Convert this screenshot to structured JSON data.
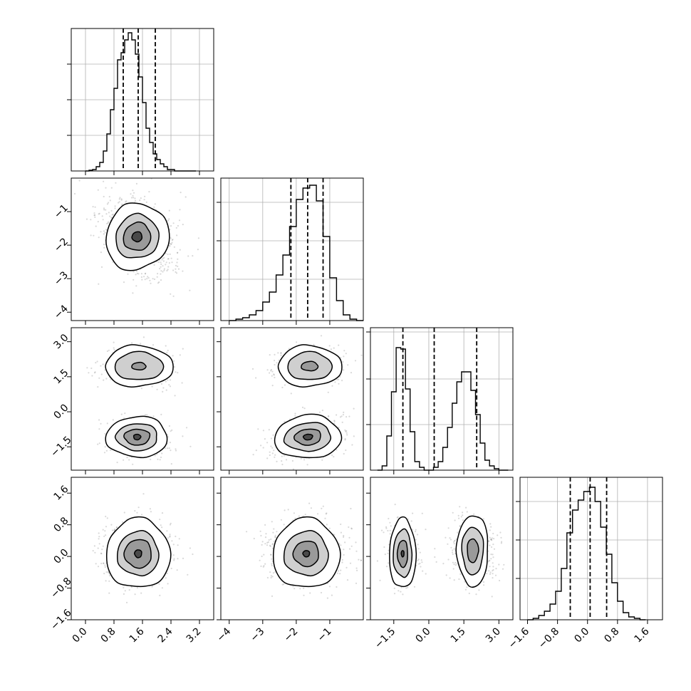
{
  "chart_data": {
    "type": "corner",
    "grid": true,
    "parameters": [
      {
        "xlim": [
          -0.4,
          3.6
        ],
        "xticks": [
          "0.0",
          "0.8",
          "1.6",
          "2.4",
          "3.2"
        ],
        "xtick_values": [
          0.0,
          0.8,
          1.6,
          2.4,
          3.2
        ],
        "hist_ylim": [
          0,
          1
        ],
        "hist_grid_y": [
          0.25,
          0.5,
          0.75
        ],
        "quantiles": [
          1.06,
          1.48,
          1.96
        ],
        "histogram": {
          "bins": [
            0.0,
            0.1,
            0.2,
            0.3,
            0.4,
            0.5,
            0.6,
            0.7,
            0.8,
            0.9,
            1.0,
            1.1,
            1.2,
            1.3,
            1.4,
            1.5,
            1.6,
            1.7,
            1.8,
            1.9,
            2.0,
            2.1,
            2.2,
            2.3,
            2.4,
            2.5,
            2.6,
            2.7,
            2.8,
            2.9,
            3.0
          ],
          "counts": [
            0.0,
            0.005,
            0.01,
            0.03,
            0.06,
            0.14,
            0.26,
            0.43,
            0.58,
            0.78,
            0.83,
            0.92,
            0.97,
            0.92,
            0.82,
            0.66,
            0.48,
            0.3,
            0.2,
            0.12,
            0.08,
            0.05,
            0.03,
            0.01,
            0.01,
            0.0,
            0.0,
            0.0,
            0.0,
            0.0,
            0.0
          ]
        }
      },
      {
        "xlim": [
          -4.25,
          0.0
        ],
        "ylim": [
          -4.25,
          0.0
        ],
        "xticks": [
          "−4",
          "−3",
          "−2",
          "−1"
        ],
        "xtick_values": [
          -4,
          -3,
          -2,
          -1
        ],
        "yticks": [
          "−4",
          "−3",
          "−2",
          "−1"
        ],
        "ytick_values": [
          -4,
          -3,
          -2,
          -1
        ],
        "hist_ylim": [
          0,
          1
        ],
        "hist_grid_y": [
          0.29,
          0.56,
          0.83
        ],
        "quantiles": [
          -2.16,
          -1.66,
          -1.2
        ],
        "histogram": {
          "bins": [
            -4.0,
            -3.8,
            -3.6,
            -3.4,
            -3.2,
            -3.0,
            -2.8,
            -2.6,
            -2.4,
            -2.2,
            -2.0,
            -1.8,
            -1.6,
            -1.4,
            -1.2,
            -1.0,
            -0.8,
            -0.6,
            -0.4,
            -0.2
          ],
          "counts": [
            0.0,
            0.01,
            0.02,
            0.04,
            0.07,
            0.13,
            0.2,
            0.32,
            0.46,
            0.66,
            0.85,
            0.93,
            0.95,
            0.84,
            0.59,
            0.3,
            0.14,
            0.04,
            0.01,
            0.0
          ]
        }
      },
      {
        "xlim": [
          -2.5,
          3.6
        ],
        "ylim": [
          -2.5,
          3.6
        ],
        "xticks": [
          "−1.5",
          "0.0",
          "1.5",
          "3.0"
        ],
        "xtick_values": [
          -1.5,
          0.0,
          1.5,
          3.0
        ],
        "yticks": [
          "−1.5",
          "0.0",
          "1.5",
          "3.0"
        ],
        "ytick_values": [
          -1.5,
          0.0,
          1.5,
          3.0
        ],
        "hist_ylim": [
          0,
          1
        ],
        "hist_grid_y": [
          0.32,
          0.64,
          0.97
        ],
        "quantiles": [
          -1.11,
          0.23,
          2.05
        ],
        "histogram": {
          "bins": [
            -2.2,
            -2.0,
            -1.8,
            -1.6,
            -1.4,
            -1.2,
            -1.0,
            -0.8,
            -0.6,
            -0.4,
            -0.2,
            0.0,
            0.2,
            0.4,
            0.6,
            0.8,
            1.0,
            1.2,
            1.4,
            1.6,
            1.8,
            2.0,
            2.2,
            2.4,
            2.6,
            2.8,
            3.0,
            3.2
          ],
          "counts": [
            0.0,
            0.03,
            0.24,
            0.55,
            0.86,
            0.85,
            0.57,
            0.27,
            0.06,
            0.02,
            0.0,
            0.0,
            0.02,
            0.06,
            0.16,
            0.3,
            0.47,
            0.62,
            0.69,
            0.69,
            0.56,
            0.39,
            0.19,
            0.07,
            0.03,
            0.01,
            0.0,
            0.0
          ]
        }
      },
      {
        "xlim": [
          -1.8,
          2.0
        ],
        "ylim": [
          -1.6,
          2.0
        ],
        "xticks": [
          "−1.6",
          "−0.8",
          "0.0",
          "0.8",
          "1.6"
        ],
        "xtick_values": [
          -1.6,
          -0.8,
          0.0,
          0.8,
          1.6
        ],
        "yticks": [
          "−1.6",
          "−0.8",
          "0.0",
          "0.8",
          "1.6"
        ],
        "ytick_values": [
          -1.6,
          -0.8,
          0.0,
          0.8,
          1.6
        ],
        "hist_ylim": [
          0,
          1
        ],
        "hist_grid_y": [
          0.29,
          0.56,
          0.83
        ],
        "quantiles": [
          -0.46,
          0.07,
          0.51
        ],
        "histogram": {
          "bins": [
            -1.6,
            -1.45,
            -1.3,
            -1.15,
            -1.0,
            -0.85,
            -0.7,
            -0.55,
            -0.4,
            -0.25,
            -0.1,
            0.05,
            0.2,
            0.35,
            0.5,
            0.65,
            0.8,
            0.95,
            1.1,
            1.25,
            1.4
          ],
          "counts": [
            0.0,
            0.01,
            0.03,
            0.06,
            0.11,
            0.2,
            0.36,
            0.61,
            0.77,
            0.84,
            0.9,
            0.93,
            0.83,
            0.65,
            0.46,
            0.26,
            0.13,
            0.05,
            0.02,
            0.01,
            0.0
          ]
        }
      }
    ],
    "joint": [
      {
        "row": 1,
        "col": 0,
        "clusters": [
          {
            "cx": 1.45,
            "cy": -1.75,
            "sx": 0.55,
            "sy": 0.62,
            "rho": -0.3,
            "n": 700,
            "levels": [
              [
                0.88,
                1.0
              ],
              [
                0.6,
                0.66
              ],
              [
                0.38,
                0.42
              ],
              [
                0.14,
                0.15
              ]
            ]
          }
        ]
      },
      {
        "row": 2,
        "col": 0,
        "clusters": [
          {
            "cx": 1.5,
            "cy": 1.95,
            "sx": 0.5,
            "sy": 0.44,
            "rho": 0.0,
            "n": 330,
            "levels": [
              [
                0.95,
                0.88
              ],
              [
                0.68,
                0.6
              ],
              [
                0.2,
                0.16
              ]
            ]
          },
          {
            "cx": 1.45,
            "cy": -1.08,
            "sx": 0.45,
            "sy": 0.45,
            "rho": 0.0,
            "n": 330,
            "levels": [
              [
                0.86,
                0.87
              ],
              [
                0.58,
                0.58
              ],
              [
                0.36,
                0.34
              ],
              [
                0.1,
                0.12
              ]
            ]
          }
        ]
      },
      {
        "row": 2,
        "col": 1,
        "clusters": [
          {
            "cx": -1.6,
            "cy": 1.95,
            "sx": 0.55,
            "sy": 0.44,
            "rho": 0.0,
            "n": 330,
            "levels": [
              [
                0.95,
                0.88
              ],
              [
                0.66,
                0.6
              ],
              [
                0.25,
                0.2
              ]
            ]
          },
          {
            "cx": -1.65,
            "cy": -1.08,
            "sx": 0.55,
            "sy": 0.47,
            "rho": 0.35,
            "n": 330,
            "levels": [
              [
                1.0,
                0.92
              ],
              [
                0.7,
                0.6
              ],
              [
                0.4,
                0.34
              ],
              [
                0.14,
                0.12
              ]
            ]
          }
        ]
      },
      {
        "row": 3,
        "col": 0,
        "clusters": [
          {
            "cx": 1.48,
            "cy": 0.07,
            "sx": 0.5,
            "sy": 0.4,
            "rho": 0.0,
            "n": 700,
            "levels": [
              [
                0.9,
                0.88
              ],
              [
                0.58,
                0.56
              ],
              [
                0.38,
                0.36
              ],
              [
                0.1,
                0.1
              ]
            ]
          }
        ]
      },
      {
        "row": 3,
        "col": 1,
        "clusters": [
          {
            "cx": -1.7,
            "cy": 0.07,
            "sx": 0.58,
            "sy": 0.4,
            "rho": 0.0,
            "n": 700,
            "levels": [
              [
                1.0,
                0.88
              ],
              [
                0.66,
                0.56
              ],
              [
                0.38,
                0.32
              ],
              [
                0.1,
                0.08
              ]
            ]
          }
        ]
      },
      {
        "row": 3,
        "col": 2,
        "clusters": [
          {
            "cx": -1.12,
            "cy": 0.07,
            "sx": 0.35,
            "sy": 0.42,
            "rho": 0.0,
            "n": 350,
            "levels": [
              [
                0.57,
                0.88
              ],
              [
                0.4,
                0.6
              ],
              [
                0.22,
                0.34
              ],
              [
                0.06,
                0.08
              ]
            ]
          },
          {
            "cx": 1.88,
            "cy": 0.15,
            "sx": 0.52,
            "sy": 0.45,
            "rho": 0.0,
            "n": 350,
            "levels": [
              [
                0.67,
                0.9
              ],
              [
                0.46,
                0.6
              ],
              [
                0.24,
                0.3
              ]
            ]
          }
        ]
      }
    ]
  }
}
